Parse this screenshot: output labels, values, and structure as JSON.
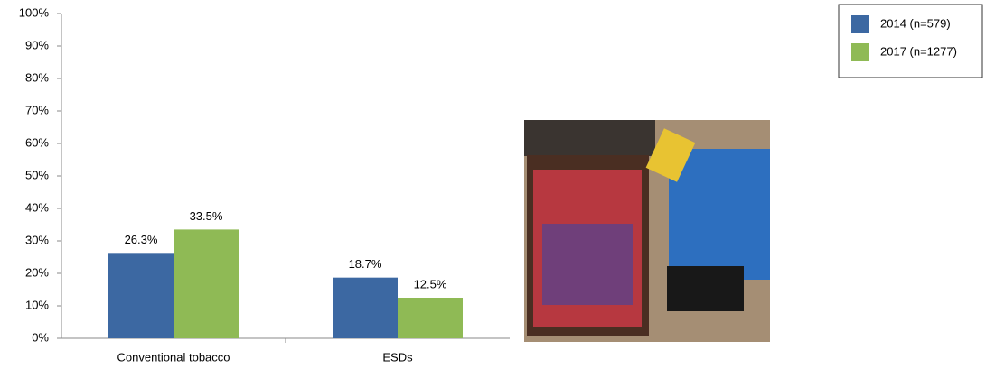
{
  "chart_data": {
    "type": "bar",
    "categories": [
      "Conventional tobacco",
      "ESDs"
    ],
    "series": [
      {
        "name": "2014 (n=579)",
        "color": "#3c68a2",
        "values": [
          26.3,
          18.7
        ],
        "value_labels": [
          "26.3%",
          "18.7%"
        ]
      },
      {
        "name": "2017 (n=1277)",
        "color": "#8fba55",
        "values": [
          33.5,
          12.5
        ],
        "value_labels": [
          "33.5%",
          "12.5%"
        ]
      }
    ],
    "ylim": [
      0,
      100
    ],
    "yticks": [
      {
        "value": 0,
        "label": "0%"
      },
      {
        "value": 10,
        "label": "10%"
      },
      {
        "value": 20,
        "label": "20%"
      },
      {
        "value": 30,
        "label": "30%"
      },
      {
        "value": 40,
        "label": "40%"
      },
      {
        "value": 50,
        "label": "50%"
      },
      {
        "value": 60,
        "label": "60%"
      },
      {
        "value": 70,
        "label": "70%"
      },
      {
        "value": 80,
        "label": "80%"
      },
      {
        "value": 90,
        "label": "90%"
      },
      {
        "value": 100,
        "label": "100%"
      }
    ],
    "legend": "top-right"
  }
}
